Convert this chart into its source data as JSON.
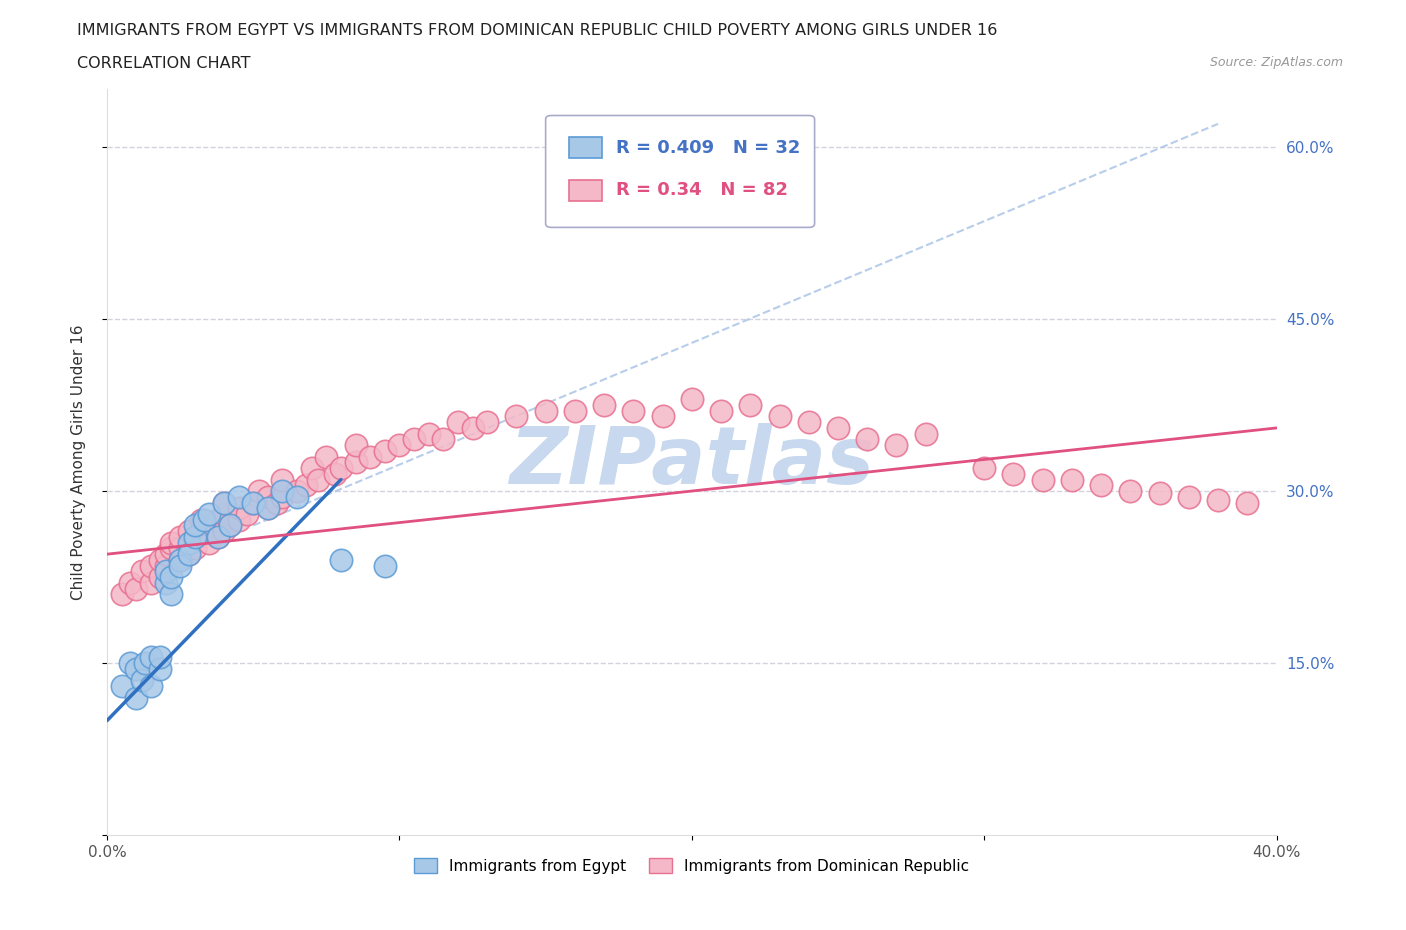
{
  "title_line1": "IMMIGRANTS FROM EGYPT VS IMMIGRANTS FROM DOMINICAN REPUBLIC CHILD POVERTY AMONG GIRLS UNDER 16",
  "title_line2": "CORRELATION CHART",
  "source_text": "Source: ZipAtlas.com",
  "ylabel": "Child Poverty Among Girls Under 16",
  "xlim": [
    0.0,
    0.4
  ],
  "ylim": [
    0.0,
    0.65
  ],
  "xticks": [
    0.0,
    0.1,
    0.2,
    0.3,
    0.4
  ],
  "xticklabels": [
    "0.0%",
    "",
    "",
    "",
    "40.0%"
  ],
  "yticks": [
    0.0,
    0.15,
    0.3,
    0.45,
    0.6
  ],
  "yticklabels_right": [
    "",
    "15.0%",
    "30.0%",
    "45.0%",
    "60.0%"
  ],
  "egypt_color": "#a8c8e8",
  "egypt_edge_color": "#5b9bd5",
  "dr_color": "#f4b8c8",
  "dr_edge_color": "#e87090",
  "egypt_R": 0.409,
  "egypt_N": 32,
  "dr_R": 0.34,
  "dr_N": 82,
  "egypt_line_color": "#3070c0",
  "dr_line_color": "#e05080",
  "diag_line_color": "#b0c8e8",
  "background_color": "#ffffff",
  "grid_color": "#c8c8d8",
  "watermark_color": "#c8d8ee",
  "legend_text_egypt_color": "#4472c4",
  "legend_text_dr_color": "#e05080",
  "ytick_color": "#4472c4",
  "egypt_x": [
    0.005,
    0.008,
    0.01,
    0.01,
    0.012,
    0.013,
    0.015,
    0.015,
    0.018,
    0.018,
    0.02,
    0.02,
    0.022,
    0.022,
    0.025,
    0.025,
    0.028,
    0.028,
    0.03,
    0.03,
    0.033,
    0.035,
    0.038,
    0.04,
    0.042,
    0.045,
    0.05,
    0.055,
    0.06,
    0.065,
    0.08,
    0.095
  ],
  "egypt_y": [
    0.13,
    0.15,
    0.12,
    0.145,
    0.135,
    0.15,
    0.13,
    0.155,
    0.145,
    0.155,
    0.22,
    0.23,
    0.21,
    0.225,
    0.24,
    0.235,
    0.255,
    0.245,
    0.26,
    0.27,
    0.275,
    0.28,
    0.26,
    0.29,
    0.27,
    0.295,
    0.29,
    0.285,
    0.3,
    0.295,
    0.24,
    0.235
  ],
  "dr_x": [
    0.005,
    0.008,
    0.01,
    0.012,
    0.015,
    0.015,
    0.018,
    0.018,
    0.02,
    0.02,
    0.022,
    0.022,
    0.025,
    0.025,
    0.025,
    0.028,
    0.028,
    0.03,
    0.03,
    0.032,
    0.032,
    0.035,
    0.035,
    0.038,
    0.038,
    0.04,
    0.04,
    0.04,
    0.042,
    0.045,
    0.045,
    0.048,
    0.05,
    0.052,
    0.055,
    0.055,
    0.058,
    0.06,
    0.06,
    0.065,
    0.068,
    0.07,
    0.072,
    0.075,
    0.078,
    0.08,
    0.085,
    0.085,
    0.09,
    0.095,
    0.1,
    0.105,
    0.11,
    0.115,
    0.12,
    0.125,
    0.13,
    0.14,
    0.15,
    0.16,
    0.17,
    0.18,
    0.19,
    0.2,
    0.21,
    0.22,
    0.23,
    0.24,
    0.25,
    0.26,
    0.27,
    0.28,
    0.3,
    0.31,
    0.32,
    0.33,
    0.34,
    0.35,
    0.36,
    0.37,
    0.38,
    0.39
  ],
  "dr_y": [
    0.21,
    0.22,
    0.215,
    0.23,
    0.22,
    0.235,
    0.225,
    0.24,
    0.235,
    0.245,
    0.25,
    0.255,
    0.24,
    0.25,
    0.26,
    0.245,
    0.265,
    0.25,
    0.26,
    0.265,
    0.275,
    0.255,
    0.27,
    0.26,
    0.275,
    0.265,
    0.28,
    0.29,
    0.27,
    0.275,
    0.285,
    0.28,
    0.29,
    0.3,
    0.285,
    0.295,
    0.29,
    0.295,
    0.31,
    0.3,
    0.305,
    0.32,
    0.31,
    0.33,
    0.315,
    0.32,
    0.325,
    0.34,
    0.33,
    0.335,
    0.34,
    0.345,
    0.35,
    0.345,
    0.36,
    0.355,
    0.36,
    0.365,
    0.37,
    0.37,
    0.375,
    0.37,
    0.365,
    0.38,
    0.37,
    0.375,
    0.365,
    0.36,
    0.355,
    0.345,
    0.34,
    0.35,
    0.32,
    0.315,
    0.31,
    0.31,
    0.305,
    0.3,
    0.298,
    0.295,
    0.292,
    0.29
  ]
}
